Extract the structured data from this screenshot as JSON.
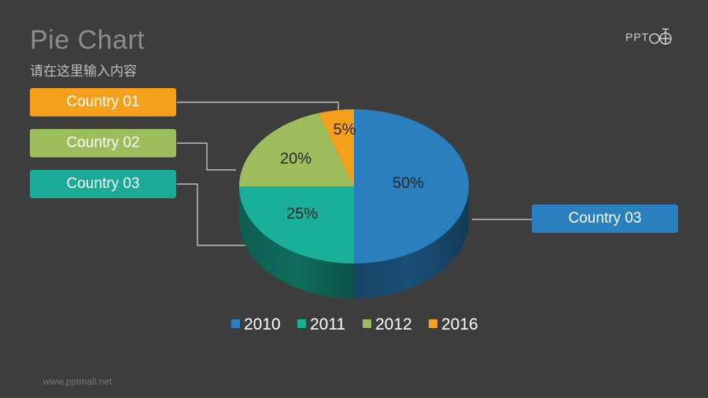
{
  "slide": {
    "title": "Pie Chart",
    "subtitle": "请在这里输入内容",
    "logo_text": "PPT",
    "footer": "www.pptmall.net"
  },
  "callouts": [
    {
      "label": "Country 01",
      "color": "#f5a01a"
    },
    {
      "label": "Country 02",
      "color": "#9dbd5c"
    },
    {
      "label": "Country 03",
      "color": "#1aaa96"
    },
    {
      "label": "Country 03",
      "color": "#2a7fbf"
    }
  ],
  "chart_data": {
    "type": "pie",
    "style": "3d",
    "categories": [
      "2010",
      "2011",
      "2012",
      "2016"
    ],
    "values": [
      50,
      25,
      20,
      5
    ],
    "labels": [
      "50%",
      "25%",
      "20%",
      "5%"
    ],
    "colors": [
      "#2a7fbf",
      "#1aaf98",
      "#9dbd5c",
      "#f5a01a"
    ],
    "legend_position": "bottom"
  }
}
